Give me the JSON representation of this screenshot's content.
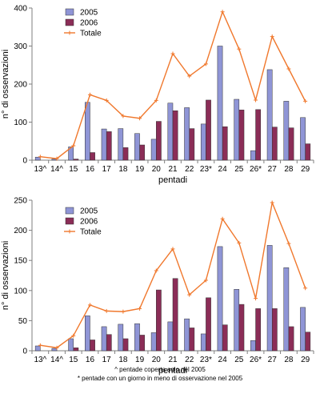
{
  "colors": {
    "s2005": "#8f95d6",
    "s2006": "#8b2d57",
    "totale": "#f0782d",
    "axis": "#7f7f7f",
    "edge": "#333333"
  },
  "chart_data": [
    {
      "type": "bar",
      "categories": [
        "13^",
        "14^",
        "15",
        "16",
        "17",
        "18",
        "19",
        "20",
        "21",
        "22",
        "23*",
        "24",
        "25",
        "26*",
        "27",
        "28",
        "29"
      ],
      "series": [
        {
          "name": "2005",
          "type": "bar",
          "values": [
            8,
            3,
            35,
            152,
            82,
            83,
            70,
            55,
            150,
            138,
            95,
            300,
            160,
            25,
            238,
            155,
            112
          ]
        },
        {
          "name": "2006",
          "type": "bar",
          "values": [
            0,
            0,
            3,
            20,
            75,
            33,
            40,
            102,
            130,
            83,
            158,
            88,
            132,
            133,
            87,
            85,
            43
          ]
        },
        {
          "name": "Totale",
          "type": "line",
          "values": [
            9,
            4,
            38,
            172,
            157,
            116,
            110,
            157,
            280,
            221,
            253,
            390,
            292,
            158,
            325,
            240,
            155
          ]
        }
      ],
      "xlabel": "pentadi",
      "ylabel": "n° di osservazioni",
      "yticks": [
        "0",
        "100",
        "200",
        "300",
        "400"
      ],
      "ylim": [
        0,
        400
      ],
      "legend": "top-left"
    },
    {
      "type": "bar",
      "categories": [
        "13^",
        "14^",
        "15",
        "16",
        "17",
        "18",
        "19",
        "20",
        "21",
        "22",
        "23*",
        "24",
        "25",
        "26*",
        "27",
        "28",
        "29"
      ],
      "series": [
        {
          "name": "2005",
          "type": "bar",
          "values": [
            8,
            4,
            20,
            58,
            40,
            44,
            45,
            30,
            48,
            53,
            28,
            173,
            102,
            17,
            175,
            138,
            72
          ]
        },
        {
          "name": "2006",
          "type": "bar",
          "values": [
            0,
            0,
            5,
            18,
            27,
            20,
            26,
            101,
            120,
            38,
            88,
            43,
            77,
            70,
            70,
            40,
            31
          ]
        },
        {
          "name": "Totale",
          "type": "line",
          "values": [
            9,
            5,
            25,
            76,
            66,
            65,
            70,
            133,
            169,
            93,
            117,
            219,
            179,
            87,
            246,
            178,
            104
          ]
        }
      ],
      "xlabel": "pentadi",
      "ylabel": "n° di osservazioni",
      "yticks": [
        "0",
        "50",
        "100",
        "150",
        "200",
        "250"
      ],
      "ylim": [
        0,
        250
      ],
      "legend": "top-left"
    }
  ],
  "footnotes": [
    "^ pentade coperta solo nel 2005",
    "* pentade con un giorno in meno di osservazione nel 2005"
  ]
}
